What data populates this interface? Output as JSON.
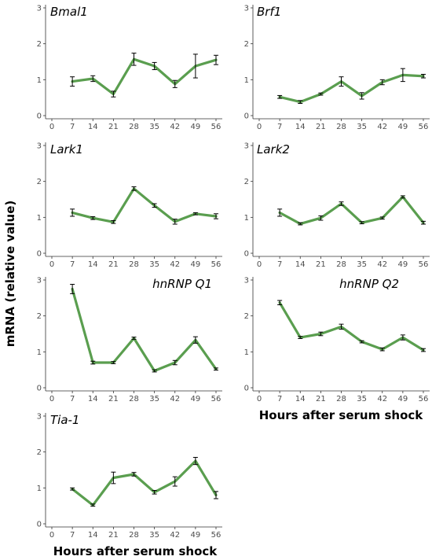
{
  "ylabel": "mRNA (relative value)",
  "xlabel": "Hours after serum shock",
  "line_color": "#5a9e4f",
  "chart_data": [
    {
      "type": "line",
      "title": "Bmal1",
      "x": [
        7,
        14,
        21,
        28,
        35,
        42,
        49,
        56
      ],
      "values": [
        0.95,
        1.03,
        0.6,
        1.57,
        1.38,
        0.88,
        1.38,
        1.55
      ],
      "errors": [
        0.13,
        0.08,
        0.08,
        0.17,
        0.1,
        0.1,
        0.33,
        0.13
      ],
      "xticks": [
        0,
        7,
        14,
        21,
        28,
        35,
        42,
        49,
        56
      ],
      "yticks": [
        0,
        1,
        2,
        3
      ],
      "ylim": [
        0,
        3
      ],
      "xlim": [
        0,
        56
      ]
    },
    {
      "type": "line",
      "title": "Brf1",
      "x": [
        7,
        14,
        21,
        28,
        35,
        42,
        49,
        56
      ],
      "values": [
        0.52,
        0.38,
        0.6,
        0.95,
        0.55,
        0.93,
        1.13,
        1.1
      ],
      "errors": [
        0.04,
        0.04,
        0.03,
        0.13,
        0.09,
        0.07,
        0.18,
        0.05
      ],
      "xticks": [
        0,
        7,
        14,
        21,
        28,
        35,
        42,
        49,
        56
      ],
      "yticks": [
        0,
        1,
        2,
        3
      ],
      "ylim": [
        0,
        3
      ],
      "xlim": [
        0,
        56
      ]
    },
    {
      "type": "line",
      "title": "Lark1",
      "x": [
        7,
        14,
        21,
        28,
        35,
        42,
        49,
        56
      ],
      "values": [
        1.13,
        0.98,
        0.87,
        1.8,
        1.33,
        0.88,
        1.1,
        1.03
      ],
      "errors": [
        0.1,
        0.04,
        0.04,
        0.05,
        0.05,
        0.07,
        0.03,
        0.07
      ],
      "xticks": [
        0,
        7,
        14,
        21,
        28,
        35,
        42,
        49,
        56
      ],
      "yticks": [
        0,
        1,
        2,
        3
      ],
      "ylim": [
        0,
        3
      ],
      "xlim": [
        0,
        56
      ]
    },
    {
      "type": "line",
      "title": "Lark2",
      "x": [
        7,
        14,
        21,
        28,
        35,
        42,
        49,
        56
      ],
      "values": [
        1.13,
        0.82,
        0.98,
        1.38,
        0.85,
        0.98,
        1.57,
        0.85
      ],
      "errors": [
        0.1,
        0.03,
        0.06,
        0.05,
        0.03,
        0.03,
        0.03,
        0.04
      ],
      "xticks": [
        0,
        7,
        14,
        21,
        28,
        35,
        42,
        49,
        56
      ],
      "yticks": [
        0,
        1,
        2,
        3
      ],
      "ylim": [
        0,
        3
      ],
      "xlim": [
        0,
        56
      ]
    },
    {
      "type": "line",
      "title": "hnRNP Q1",
      "x": [
        7,
        14,
        21,
        28,
        35,
        42,
        49,
        56
      ],
      "values": [
        2.75,
        0.7,
        0.7,
        1.38,
        0.47,
        0.7,
        1.33,
        0.52
      ],
      "errors": [
        0.13,
        0.04,
        0.03,
        0.03,
        0.03,
        0.06,
        0.09,
        0.03
      ],
      "xticks": [
        0,
        7,
        14,
        21,
        28,
        35,
        42,
        49,
        56
      ],
      "yticks": [
        0,
        1,
        2,
        3
      ],
      "ylim": [
        0,
        3
      ],
      "xlim": [
        0,
        56
      ]
    },
    {
      "type": "line",
      "title": "hnRNP Q2",
      "x": [
        7,
        14,
        21,
        28,
        35,
        42,
        49,
        56
      ],
      "values": [
        2.37,
        1.4,
        1.5,
        1.7,
        1.28,
        1.07,
        1.4,
        1.05
      ],
      "errors": [
        0.06,
        0.03,
        0.05,
        0.07,
        0.03,
        0.04,
        0.07,
        0.04
      ],
      "xticks": [
        0,
        7,
        14,
        21,
        28,
        35,
        42,
        49,
        56
      ],
      "yticks": [
        0,
        1,
        2,
        3
      ],
      "ylim": [
        0,
        3
      ],
      "xlim": [
        0,
        56
      ]
    },
    {
      "type": "line",
      "title": "Tia-1",
      "x": [
        7,
        14,
        21,
        28,
        35,
        42,
        49,
        56
      ],
      "values": [
        0.97,
        0.52,
        1.28,
        1.38,
        0.88,
        1.18,
        1.75,
        0.8
      ],
      "errors": [
        0.03,
        0.03,
        0.16,
        0.05,
        0.05,
        0.13,
        0.1,
        0.1
      ],
      "xticks": [
        0,
        7,
        14,
        21,
        28,
        35,
        42,
        49,
        56
      ],
      "yticks": [
        0,
        1,
        2,
        3
      ],
      "ylim": [
        0,
        3
      ],
      "xlim": [
        0,
        56
      ]
    }
  ]
}
